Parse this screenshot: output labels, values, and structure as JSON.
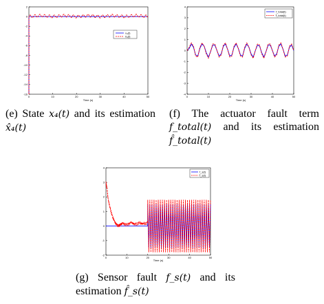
{
  "colors": {
    "true_series": "#0000ff",
    "estimate_series": "#ff0000",
    "axes": "#000000"
  },
  "chart_data": [
    {
      "id": "e",
      "type": "line",
      "caption_parts": [
        "(e) State ",
        "x₄(t)",
        " and its estimation ",
        "x̂₄(t)"
      ],
      "xlabel": "Time (s)",
      "xlim": [
        0,
        50
      ],
      "ylim": [
        -16,
        2
      ],
      "xticks": [
        0,
        10,
        20,
        30,
        40,
        50
      ],
      "yticks": [
        2,
        0,
        -2,
        -4,
        -6,
        -8,
        -10,
        -12,
        -14,
        -16
      ],
      "legend": [
        "x₄(t)",
        "x̂₄(t)"
      ],
      "legend_position": "upper-right",
      "series": [
        {
          "name": "x₄(t)",
          "color": "#0000ff",
          "style": "solid",
          "x": [
            0,
            0.02,
            5,
            10,
            15,
            20,
            25,
            30,
            35,
            40,
            45,
            50
          ],
          "y": [
            -16,
            0,
            0,
            0,
            0,
            0,
            0,
            0,
            0,
            0,
            0,
            0
          ]
        },
        {
          "name": "x̂₄(t)",
          "color": "#ff0000",
          "style": "dashed",
          "x": [
            0,
            0.02,
            5,
            10,
            15,
            20,
            25,
            30,
            35,
            40,
            45,
            50
          ],
          "y": [
            -16,
            0,
            0.2,
            0,
            0.2,
            0,
            0.2,
            0,
            0.2,
            0,
            0.2,
            0
          ],
          "oscillation_amplitude": 0.3
        }
      ]
    },
    {
      "id": "f",
      "type": "line",
      "caption_parts": [
        "(f) The actuator fault term ",
        "f_total(t)",
        " and its estimation ",
        "f̂_total(t)"
      ],
      "xlabel": "Time (s)",
      "xlim": [
        0,
        50
      ],
      "ylim": [
        -4,
        4
      ],
      "xticks": [
        0,
        10,
        20,
        30,
        40,
        50
      ],
      "yticks": [
        4,
        3,
        2,
        1,
        0,
        -1,
        -2,
        -3,
        -4
      ],
      "legend": [
        "f_total(t)",
        "f̂_total(t)"
      ],
      "legend_position": "upper-right",
      "series": [
        {
          "name": "f_total(t)",
          "color": "#0000ff",
          "style": "solid",
          "x": [
            0,
            1,
            2,
            3,
            4,
            5,
            6,
            7,
            8,
            9,
            10,
            11,
            12,
            13,
            14,
            15,
            16,
            17,
            18,
            19,
            20,
            21,
            22,
            23,
            24,
            25,
            26,
            27,
            28,
            29,
            30,
            31,
            32,
            33,
            34,
            35,
            36,
            37,
            38,
            39,
            40,
            41,
            42,
            43,
            44,
            45,
            46,
            47,
            48,
            49,
            50
          ],
          "y": [
            0,
            0.2,
            0.6,
            0.3,
            -0.4,
            -0.5,
            0.2,
            0.6,
            0.4,
            -0.2,
            -0.6,
            -0.1,
            0.5,
            0.5,
            0,
            -0.5,
            -0.3,
            0.4,
            0.6,
            0.1,
            -0.5,
            -0.4,
            0.3,
            0.6,
            0.2,
            -0.4,
            -0.5,
            0.2,
            0.6,
            0.3,
            -0.3,
            -0.6,
            0,
            0.5,
            0.4,
            -0.2,
            -0.6,
            -0.1,
            0.5,
            0.5,
            0,
            -0.5,
            -0.3,
            0.4,
            0.6,
            0.1,
            -0.5,
            -0.4,
            0.3,
            0.5,
            0
          ]
        },
        {
          "name": "f̂_total(t)",
          "color": "#ff0000",
          "style": "dashed",
          "x": [
            0,
            1,
            2,
            3,
            4,
            5,
            6,
            7,
            8,
            9,
            10,
            11,
            12,
            13,
            14,
            15,
            16,
            17,
            18,
            19,
            20,
            21,
            22,
            23,
            24,
            25,
            26,
            27,
            28,
            29,
            30,
            31,
            32,
            33,
            34,
            35,
            36,
            37,
            38,
            39,
            40,
            41,
            42,
            43,
            44,
            45,
            46,
            47,
            48,
            49,
            50
          ],
          "y": [
            0,
            0.3,
            0.7,
            0.4,
            -0.5,
            -0.6,
            0.3,
            0.7,
            0.4,
            -0.3,
            -0.7,
            -0.1,
            0.6,
            0.6,
            0,
            -0.6,
            -0.4,
            0.5,
            0.7,
            0.1,
            -0.6,
            -0.5,
            0.4,
            0.7,
            0.2,
            -0.5,
            -0.6,
            0.3,
            0.7,
            0.3,
            -0.4,
            -0.7,
            0,
            0.6,
            0.5,
            -0.3,
            -0.7,
            -0.1,
            0.6,
            0.6,
            0,
            -0.6,
            -0.4,
            0.5,
            0.7,
            0.1,
            -0.6,
            -0.5,
            0.4,
            0.6,
            0
          ]
        }
      ]
    },
    {
      "id": "g",
      "type": "line",
      "caption_parts": [
        "(g) Sensor fault ",
        "f_s(t)",
        " and its estimation ",
        "f̂_s(t)"
      ],
      "xlabel": "Time (s)",
      "xlim": [
        0,
        50
      ],
      "ylim": [
        -2,
        4
      ],
      "xticks": [
        0,
        10,
        20,
        30,
        40,
        50
      ],
      "yticks": [
        4,
        3,
        2,
        1,
        0,
        -1,
        -2
      ],
      "legend": [
        "f_s(t)",
        "f̂_s(t)"
      ],
      "legend_position": "upper-right",
      "series": [
        {
          "name": "f_s(t)",
          "color": "#0000ff",
          "style": "solid",
          "segments": [
            {
              "x": [
                0,
                20
              ],
              "y": [
                0,
                0
              ]
            },
            {
              "x": [
                20,
                50
              ],
              "y_min": -1.5,
              "y_max": 1.5,
              "period": 1.0
            }
          ]
        },
        {
          "name": "f̂_s(t)",
          "color": "#ff0000",
          "style": "dashed",
          "segments": [
            {
              "x": [
                0,
                0.5,
                1,
                2,
                3,
                4,
                5,
                6,
                7,
                8,
                10,
                12,
                14,
                16,
                18,
                20
              ],
              "y": [
                3,
                2.6,
                1.9,
                1.2,
                0.7,
                0.35,
                0.1,
                0,
                0.1,
                0.2,
                0.05,
                0.25,
                0.1,
                0.2,
                0.15,
                0.2
              ],
              "noise_amplitude": 0.15
            },
            {
              "x": [
                20,
                50
              ],
              "y_min": -1.8,
              "y_max": 1.8,
              "period": 1.0
            }
          ]
        }
      ]
    }
  ]
}
